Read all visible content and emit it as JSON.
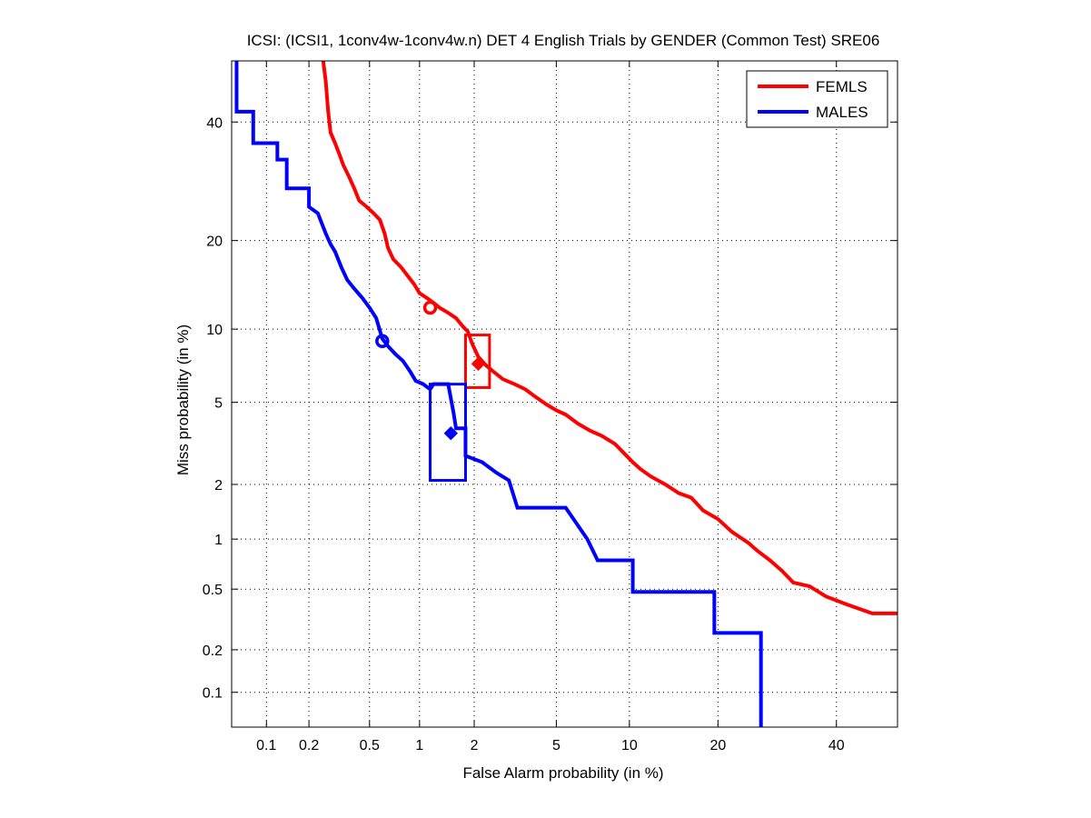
{
  "chart_data": {
    "type": "line",
    "title": "ICSI: (ICSI1, 1conv4w-1conv4w.n) DET 4 English Trials by GENDER (Common Test) SRE06",
    "xlabel": "False Alarm probability (in %)",
    "ylabel": "Miss probability (in %)",
    "x_scale": "probit",
    "y_scale": "probit",
    "xlim": [
      0.055,
      52
    ],
    "ylim": [
      0.055,
      52
    ],
    "x_ticks": [
      0.1,
      0.2,
      0.5,
      1,
      2,
      5,
      10,
      20,
      40
    ],
    "x_tick_labels": [
      "0.1",
      "0.2",
      "0.5",
      "1",
      "2",
      "5",
      "10",
      "20",
      "40"
    ],
    "y_ticks": [
      0.1,
      0.2,
      0.5,
      1,
      2,
      5,
      10,
      20,
      40
    ],
    "y_tick_labels": [
      "0.1",
      "0.2",
      "0.5",
      "1",
      "2",
      "5",
      "10",
      "20",
      "40"
    ],
    "grid": true,
    "legend_position": "top-right",
    "series": [
      {
        "name": "FEMLS",
        "color": "#ff0000",
        "points": [
          [
            0.25,
            55
          ],
          [
            0.26,
            48
          ],
          [
            0.27,
            42
          ],
          [
            0.28,
            38
          ],
          [
            0.3,
            36
          ],
          [
            0.32,
            34
          ],
          [
            0.34,
            32
          ],
          [
            0.37,
            30
          ],
          [
            0.4,
            28
          ],
          [
            0.43,
            26
          ],
          [
            0.48,
            25
          ],
          [
            0.53,
            24
          ],
          [
            0.58,
            23
          ],
          [
            0.62,
            21
          ],
          [
            0.65,
            19
          ],
          [
            0.7,
            17.5
          ],
          [
            0.78,
            16.5
          ],
          [
            0.85,
            15.5
          ],
          [
            0.93,
            14.5
          ],
          [
            1.0,
            13.5
          ],
          [
            1.1,
            13
          ],
          [
            1.2,
            12.5
          ],
          [
            1.3,
            12
          ],
          [
            1.45,
            11.5
          ],
          [
            1.6,
            11
          ],
          [
            1.75,
            10.2
          ],
          [
            1.85,
            9.8
          ],
          [
            1.95,
            8.8
          ],
          [
            2.1,
            7.8
          ],
          [
            2.3,
            7.2
          ],
          [
            2.5,
            6.8
          ],
          [
            2.8,
            6.3
          ],
          [
            3.2,
            6.0
          ],
          [
            3.6,
            5.7
          ],
          [
            4.0,
            5.3
          ],
          [
            4.5,
            4.9
          ],
          [
            5.0,
            4.6
          ],
          [
            5.5,
            4.4
          ],
          [
            6.2,
            4.0
          ],
          [
            7.0,
            3.7
          ],
          [
            7.8,
            3.5
          ],
          [
            8.8,
            3.2
          ],
          [
            9.5,
            2.9
          ],
          [
            10.3,
            2.6
          ],
          [
            11.0,
            2.4
          ],
          [
            12.0,
            2.2
          ],
          [
            13.5,
            2.0
          ],
          [
            15.0,
            1.8
          ],
          [
            16.5,
            1.7
          ],
          [
            18.0,
            1.45
          ],
          [
            20.0,
            1.3
          ],
          [
            22.0,
            1.1
          ],
          [
            24.5,
            0.95
          ],
          [
            26.0,
            0.85
          ],
          [
            28.0,
            0.75
          ],
          [
            30.0,
            0.65
          ],
          [
            32.0,
            0.55
          ],
          [
            35.0,
            0.52
          ],
          [
            38.0,
            0.45
          ],
          [
            42.0,
            0.4
          ],
          [
            47.0,
            0.35
          ],
          [
            52.0,
            0.35
          ]
        ],
        "marker_circle": [
          1.15,
          12.0
        ],
        "marker_diamond": [
          2.1,
          7.3
        ],
        "confidence_box": {
          "x": [
            1.8,
            2.4
          ],
          "y": [
            5.8,
            9.5
          ]
        }
      },
      {
        "name": "MALES",
        "color": "#0000ff",
        "points": [
          [
            0.06,
            55
          ],
          [
            0.06,
            42
          ],
          [
            0.08,
            42
          ],
          [
            0.08,
            36
          ],
          [
            0.12,
            36
          ],
          [
            0.12,
            33
          ],
          [
            0.14,
            33
          ],
          [
            0.14,
            28
          ],
          [
            0.2,
            28
          ],
          [
            0.2,
            25
          ],
          [
            0.23,
            24
          ],
          [
            0.26,
            21
          ],
          [
            0.28,
            19.5
          ],
          [
            0.3,
            18.5
          ],
          [
            0.33,
            16.5
          ],
          [
            0.36,
            15
          ],
          [
            0.4,
            14
          ],
          [
            0.45,
            13
          ],
          [
            0.5,
            12
          ],
          [
            0.55,
            11
          ],
          [
            0.6,
            9.2
          ],
          [
            0.65,
            8.6
          ],
          [
            0.72,
            8.0
          ],
          [
            0.8,
            7.5
          ],
          [
            0.88,
            6.8
          ],
          [
            0.95,
            6.2
          ],
          [
            1.05,
            6.0
          ],
          [
            1.15,
            5.7
          ],
          [
            1.2,
            6.0
          ],
          [
            1.45,
            6.0
          ],
          [
            1.55,
            4.5
          ],
          [
            1.6,
            3.8
          ],
          [
            1.8,
            3.8
          ],
          [
            1.8,
            2.8
          ],
          [
            2.2,
            2.6
          ],
          [
            2.6,
            2.3
          ],
          [
            3.0,
            2.1
          ],
          [
            3.3,
            1.5
          ],
          [
            5.5,
            1.5
          ],
          [
            6.2,
            1.2
          ],
          [
            6.8,
            1.0
          ],
          [
            7.5,
            0.75
          ],
          [
            10.3,
            0.75
          ],
          [
            10.3,
            0.48
          ],
          [
            19.5,
            0.48
          ],
          [
            19.5,
            0.26
          ],
          [
            26.5,
            0.26
          ],
          [
            26.5,
            0.055
          ]
        ],
        "marker_circle": [
          0.6,
          9.0
        ],
        "marker_diamond": [
          1.5,
          3.6
        ],
        "confidence_box": {
          "x": [
            1.15,
            1.8
          ],
          "y": [
            2.1,
            6.0
          ]
        }
      }
    ]
  }
}
